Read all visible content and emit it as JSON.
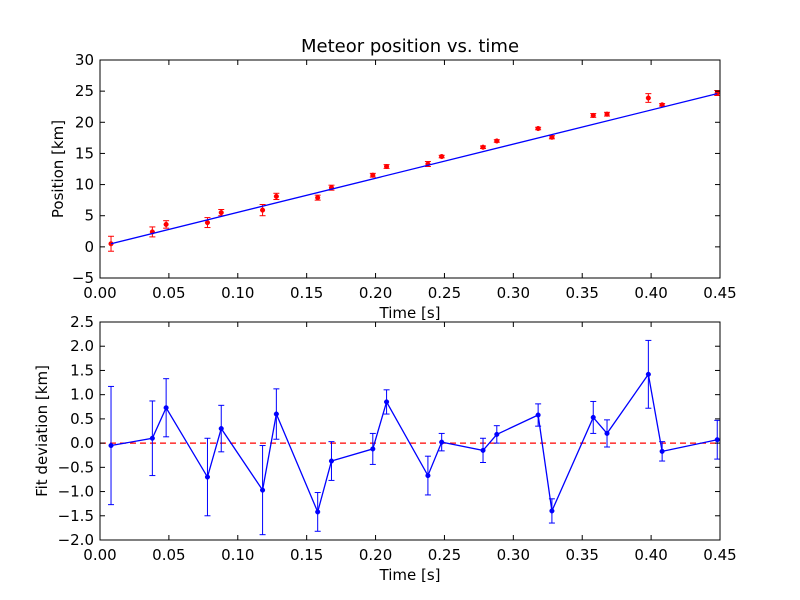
{
  "chart_data": [
    {
      "type": "scatter",
      "title": "Meteor position vs. time",
      "xlabel": "Time [s]",
      "ylabel": "Position [km]",
      "xlim": [
        0.0,
        0.45
      ],
      "ylim": [
        -5,
        30
      ],
      "x_ticks": [
        "0.00",
        "0.05",
        "0.10",
        "0.15",
        "0.20",
        "0.25",
        "0.30",
        "0.35",
        "0.40",
        "0.45"
      ],
      "y_ticks": [
        "−5",
        "0",
        "5",
        "10",
        "15",
        "20",
        "25",
        "30"
      ],
      "grid": false,
      "series": [
        {
          "kind": "errorbar-points",
          "color": "#ff0000",
          "x": [
            0.008,
            0.038,
            0.048,
            0.078,
            0.088,
            0.118,
            0.128,
            0.158,
            0.168,
            0.198,
            0.208,
            0.238,
            0.248,
            0.278,
            0.288,
            0.318,
            0.328,
            0.358,
            0.368,
            0.398,
            0.408,
            0.448
          ],
          "y": [
            0.5,
            2.4,
            3.6,
            3.9,
            5.5,
            5.9,
            8.1,
            7.9,
            9.5,
            11.5,
            12.9,
            13.3,
            14.5,
            16.0,
            17.0,
            19.0,
            17.6,
            21.1,
            21.3,
            23.9,
            22.8,
            24.7
          ],
          "yerr": [
            1.2,
            0.8,
            0.6,
            0.8,
            0.5,
            0.9,
            0.5,
            0.4,
            0.4,
            0.3,
            0.3,
            0.4,
            0.2,
            0.2,
            0.2,
            0.2,
            0.25,
            0.3,
            0.3,
            0.7,
            0.2,
            0.4
          ]
        },
        {
          "kind": "line",
          "color": "#0000ff",
          "x": [
            0.008,
            0.448
          ],
          "y": [
            0.5,
            24.6
          ]
        }
      ]
    },
    {
      "type": "line",
      "title": "",
      "xlabel": "Time [s]",
      "ylabel": "Fit deviation [km]",
      "xlim": [
        0.0,
        0.45
      ],
      "ylim": [
        -2.0,
        2.5
      ],
      "x_ticks": [
        "0.00",
        "0.05",
        "0.10",
        "0.15",
        "0.20",
        "0.25",
        "0.30",
        "0.35",
        "0.40",
        "0.45"
      ],
      "y_ticks": [
        "−2.0",
        "−1.5",
        "−1.0",
        "−0.5",
        "0.0",
        "0.5",
        "1.0",
        "1.5",
        "2.0",
        "2.5"
      ],
      "grid": false,
      "reference_line": {
        "y": 0.0,
        "color": "#ff0000",
        "style": "dashed"
      },
      "series": [
        {
          "kind": "errorbar-line",
          "color": "#0000ff",
          "x": [
            0.008,
            0.038,
            0.048,
            0.078,
            0.088,
            0.118,
            0.128,
            0.158,
            0.168,
            0.198,
            0.208,
            0.238,
            0.248,
            0.278,
            0.288,
            0.318,
            0.328,
            0.358,
            0.368,
            0.398,
            0.408,
            0.448
          ],
          "y": [
            -0.05,
            0.1,
            0.73,
            -0.7,
            0.3,
            -0.97,
            0.6,
            -1.42,
            -0.37,
            -0.12,
            0.85,
            -0.67,
            0.02,
            -0.15,
            0.18,
            0.58,
            -1.4,
            0.53,
            0.2,
            1.42,
            -0.17,
            0.07
          ],
          "yerr": [
            1.22,
            0.77,
            0.6,
            0.8,
            0.48,
            0.92,
            0.52,
            0.4,
            0.4,
            0.32,
            0.25,
            0.4,
            0.18,
            0.25,
            0.18,
            0.23,
            0.25,
            0.33,
            0.28,
            0.7,
            0.2,
            0.4
          ]
        }
      ]
    }
  ]
}
